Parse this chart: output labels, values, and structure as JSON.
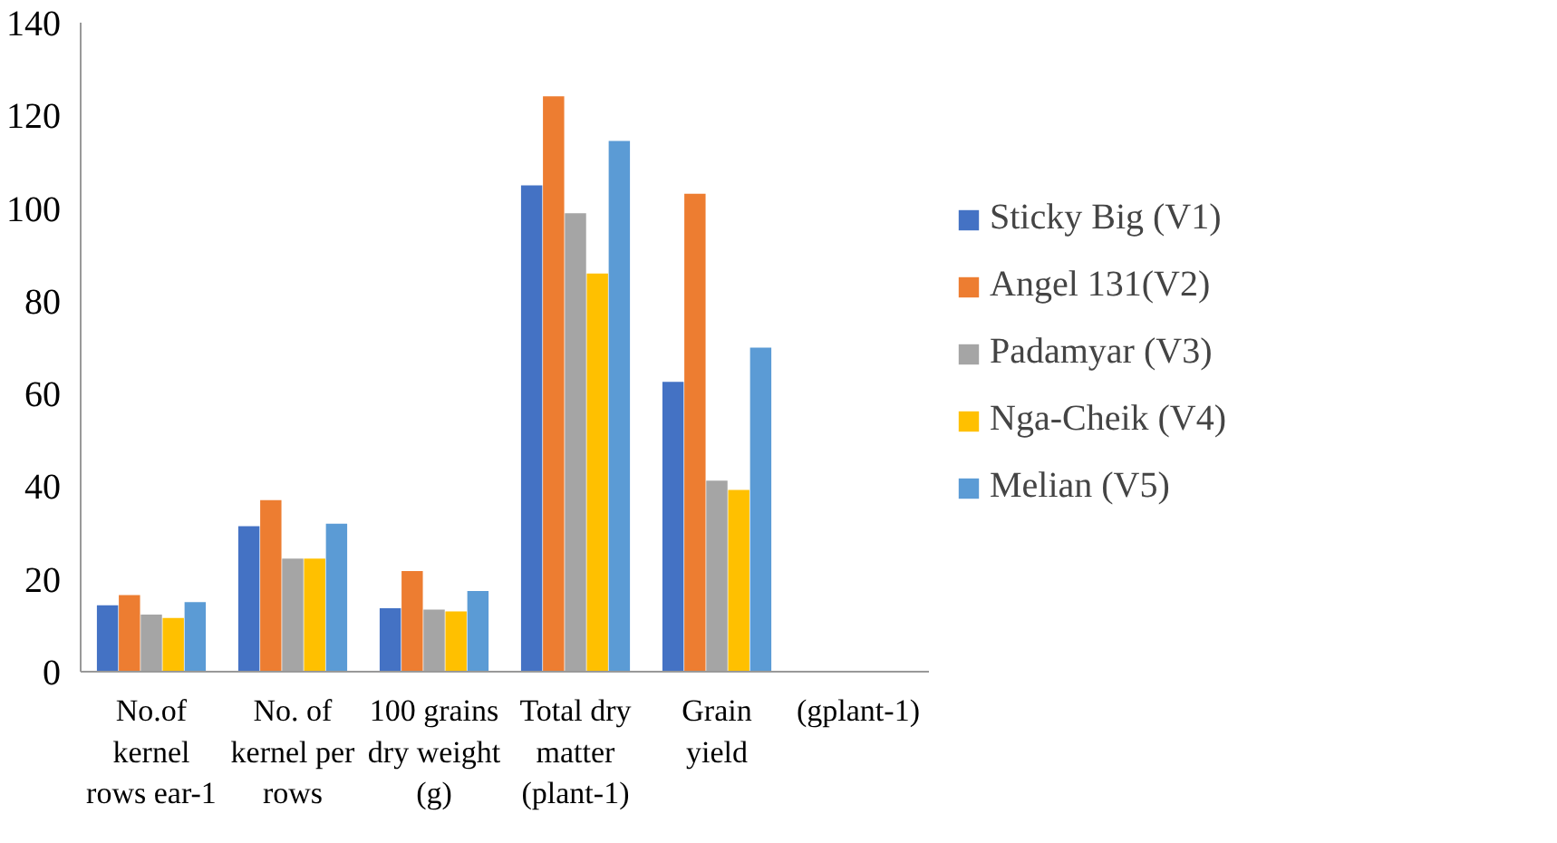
{
  "chart_data": {
    "type": "bar",
    "categories": [
      "No.of kernel rows ear-1",
      "No. of kernel per rows",
      "100 grains dry weight (g)",
      "Total dry matter (plant-1)",
      "Grain yield",
      "(gplant-1)"
    ],
    "series": [
      {
        "name": "Sticky Big (V1)",
        "color": "#4472c4",
        "values": [
          14.3,
          31.4,
          13.7,
          104.9,
          62.5,
          null
        ]
      },
      {
        "name": "Angel 131(V2)",
        "color": "#ed7d31",
        "values": [
          16.5,
          37.0,
          21.7,
          124.1,
          103.1,
          null
        ]
      },
      {
        "name": "Padamyar (V3)",
        "color": "#a5a5a5",
        "values": [
          12.3,
          24.4,
          13.4,
          98.9,
          41.2,
          null
        ]
      },
      {
        "name": "Nga-Cheik (V4)",
        "color": "#ffc000",
        "values": [
          11.6,
          24.4,
          13.0,
          85.9,
          39.2,
          null
        ]
      },
      {
        "name": "Melian (V5)",
        "color": "#5b9bd5",
        "values": [
          15.0,
          31.9,
          17.4,
          114.5,
          69.9,
          null
        ]
      }
    ],
    "ylim": [
      0,
      140
    ],
    "yticks": [
      0,
      20,
      40,
      60,
      80,
      100,
      120,
      140
    ],
    "grid": false,
    "legend": "right"
  }
}
